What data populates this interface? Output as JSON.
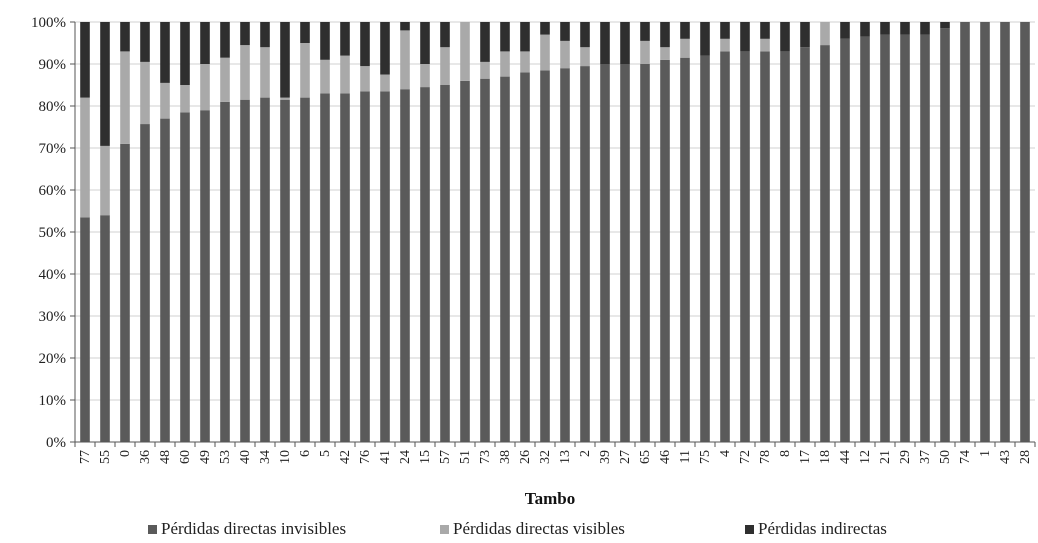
{
  "chart_data": {
    "type": "bar",
    "stacked": true,
    "normalized_percent": true,
    "xlabel": "Tambo",
    "ylabel": "",
    "ylim": [
      0,
      100
    ],
    "y_ticks": [
      "0%",
      "10%",
      "20%",
      "30%",
      "40%",
      "50%",
      "60%",
      "70%",
      "80%",
      "90%",
      "100%"
    ],
    "grid": "horizontal",
    "legend_position": "bottom",
    "categories": [
      "77",
      "55",
      "0",
      "36",
      "48",
      "60",
      "49",
      "53",
      "40",
      "34",
      "10",
      "6",
      "5",
      "42",
      "76",
      "41",
      "24",
      "15",
      "57",
      "51",
      "73",
      "38",
      "26",
      "32",
      "13",
      "2",
      "39",
      "27",
      "65",
      "46",
      "11",
      "75",
      "4",
      "72",
      "78",
      "8",
      "17",
      "18",
      "44",
      "12",
      "21",
      "29",
      "37",
      "50",
      "74",
      "1",
      "43",
      "28"
    ],
    "series": [
      {
        "name": "Pérdidas directas invisibles",
        "color": "#5a5a5a",
        "values": [
          53.5,
          54,
          71,
          75.7,
          77,
          78.5,
          79,
          81,
          81.5,
          82,
          81.5,
          82,
          83,
          83,
          83.5,
          83.5,
          84,
          84.5,
          85,
          86,
          86.5,
          87,
          88,
          88.5,
          89,
          89.5,
          90,
          90,
          90,
          91,
          91.5,
          92,
          93,
          93,
          93,
          93,
          94,
          94.5,
          96,
          96.5,
          97,
          97,
          97,
          98.5,
          100,
          100,
          100,
          100
        ]
      },
      {
        "name": "Pérdidas directas visibles",
        "color": "#a9a9a9",
        "values": [
          28.5,
          16.5,
          22,
          14.8,
          8.5,
          6.5,
          11,
          10.5,
          13,
          12,
          0.5,
          13,
          8,
          9,
          6,
          4,
          14,
          5.5,
          9,
          14,
          4,
          6,
          5,
          8.5,
          6.5,
          4.5,
          0,
          0,
          5.5,
          3,
          4.5,
          0,
          3,
          0,
          3,
          0,
          0,
          5.5,
          0,
          0,
          0,
          0,
          0,
          0,
          0,
          0,
          0,
          0
        ]
      },
      {
        "name": "Pérdidas indirectas",
        "color": "#2f2f2f",
        "values": [
          18,
          29.5,
          7,
          9.5,
          14.5,
          15,
          10,
          8.5,
          5.5,
          6,
          18,
          5,
          9,
          8,
          10.5,
          12.5,
          2,
          10,
          6,
          0,
          9.5,
          7,
          7,
          3,
          4.5,
          6,
          10,
          10,
          4.5,
          6,
          4,
          8,
          4,
          7,
          4,
          7,
          6,
          0,
          4,
          3.5,
          3,
          3,
          3,
          1.5,
          0,
          0,
          0,
          0
        ]
      }
    ]
  }
}
